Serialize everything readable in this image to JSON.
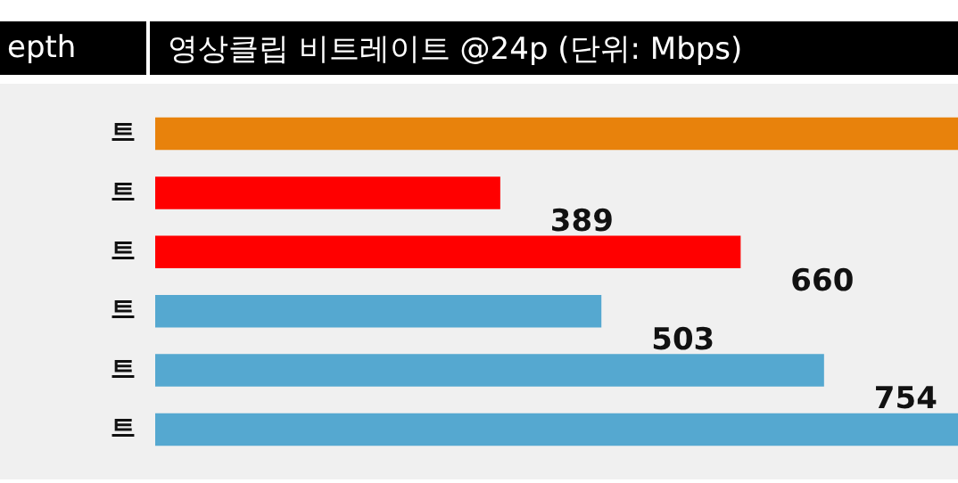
{
  "chart_data": {
    "type": "bar",
    "orientation": "horizontal",
    "title": "영상클립 비트레이트 @24p (단위: Mbps)",
    "ylabel": "epth",
    "categories": [
      "트",
      "트",
      "트",
      "트",
      "트",
      "트"
    ],
    "values": [
      905,
      389,
      660,
      503,
      754,
      905
    ],
    "colors": [
      "#e8820c",
      "#ff0000",
      "#ff0000",
      "#55a8d0",
      "#55a8d0",
      "#55a8d0"
    ],
    "value_labels": [
      null,
      "389",
      "660",
      "503",
      "754",
      null
    ],
    "xlim": [
      0,
      905
    ]
  }
}
